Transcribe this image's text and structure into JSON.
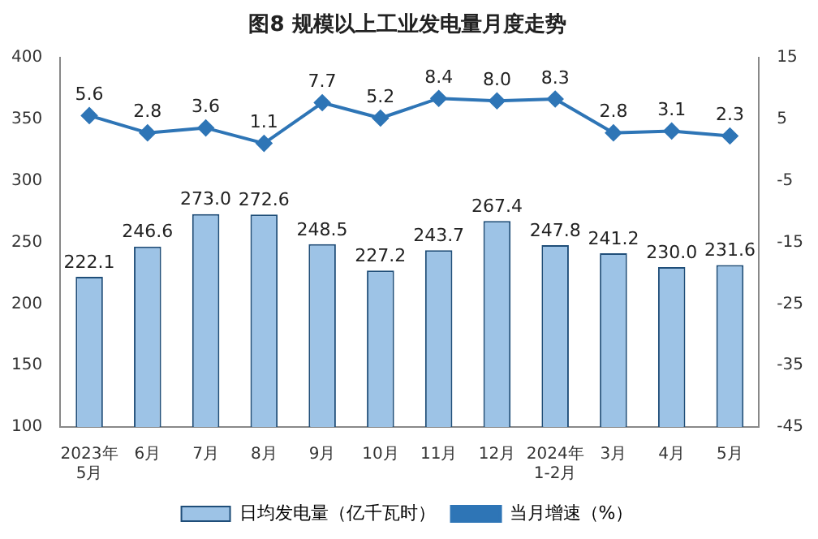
{
  "chart_data": {
    "type": "bar",
    "title": "图8 规模以上工业发电量月度走势",
    "categories": [
      "2023年\n5月",
      "6月",
      "7月",
      "8月",
      "9月",
      "10月",
      "11月",
      "12月",
      "2024年\n1-2月",
      "3月",
      "4月",
      "5月"
    ],
    "series": [
      {
        "name": "日均发电量（亿千瓦时）",
        "color": "#9dc3e6",
        "values": [
          222.1,
          246.6,
          273.0,
          272.6,
          248.5,
          227.2,
          243.7,
          267.4,
          247.8,
          241.2,
          230.0,
          231.6
        ],
        "value_labels": [
          "222.1",
          "246.6",
          "273.0",
          "272.6",
          "248.5",
          "227.2",
          "243.7",
          "267.4",
          "247.8",
          "241.2",
          "230.0",
          "231.6"
        ]
      },
      {
        "name": "当月增速（%）",
        "type": "line",
        "axis": "y2",
        "color": "#2e75b6",
        "values": [
          5.6,
          2.8,
          3.6,
          1.1,
          7.7,
          5.2,
          8.4,
          8.0,
          8.3,
          2.8,
          3.1,
          2.3
        ],
        "value_labels": [
          "5.6",
          "2.8",
          "3.6",
          "1.1",
          "7.7",
          "5.2",
          "8.4",
          "8.0",
          "8.3",
          "2.8",
          "3.1",
          "2.3"
        ]
      }
    ],
    "ylim": [
      100,
      400
    ],
    "yticks": [
      100,
      150,
      200,
      250,
      300,
      350,
      400
    ],
    "y2lim": [
      -45,
      15
    ],
    "y2ticks": [
      -45,
      -35,
      -25,
      -15,
      -5,
      5,
      15
    ],
    "legend": "bottom",
    "marker": "diamond",
    "grid": false
  }
}
